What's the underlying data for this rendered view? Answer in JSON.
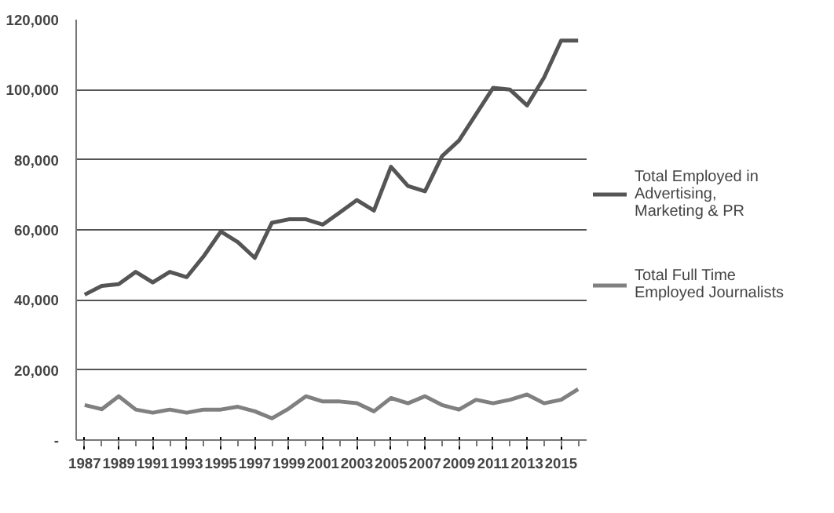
{
  "chart_data": {
    "type": "line",
    "x": [
      1987,
      1988,
      1989,
      1990,
      1991,
      1992,
      1993,
      1994,
      1995,
      1996,
      1997,
      1998,
      1999,
      2000,
      2001,
      2002,
      2003,
      2004,
      2005,
      2006,
      2007,
      2008,
      2009,
      2010,
      2011,
      2012,
      2013,
      2014,
      2015,
      2016
    ],
    "series": [
      {
        "name": "Total Employed in Advertising, Marketing & PR",
        "color": "#555555",
        "values": [
          41500,
          44000,
          44500,
          48000,
          45000,
          48000,
          46500,
          52500,
          59500,
          56500,
          52000,
          62000,
          63000,
          63000,
          61500,
          65000,
          68500,
          65500,
          78000,
          72500,
          71000,
          81000,
          85500,
          93000,
          100500,
          100000,
          95500,
          103500,
          114000,
          114000
        ]
      },
      {
        "name": "Total Full Time Employed Journalists",
        "color": "#808080",
        "values": [
          10000,
          8800,
          12500,
          8700,
          7800,
          8700,
          7800,
          8700,
          8700,
          9500,
          8200,
          6200,
          9000,
          12500,
          11000,
          11000,
          10500,
          8200,
          12000,
          10500,
          12500,
          10000,
          8700,
          11500,
          10500,
          11500,
          13000,
          10500,
          11500,
          14500
        ]
      }
    ],
    "xlim": [
      1986.5,
      2016.5
    ],
    "xticks": [
      1987,
      1989,
      1991,
      1993,
      1995,
      1997,
      1999,
      2001,
      2003,
      2005,
      2007,
      2009,
      2011,
      2013,
      2015
    ],
    "ylim": [
      0,
      120000
    ],
    "yticks": [
      {
        "value": 0,
        "label": "-"
      },
      {
        "value": 20000,
        "label": "20,000"
      },
      {
        "value": 40000,
        "label": "40,000"
      },
      {
        "value": 60000,
        "label": "60,000"
      },
      {
        "value": 80000,
        "label": "80,000"
      },
      {
        "value": 100000,
        "label": "100,000"
      },
      {
        "value": 120000,
        "label": "120,000"
      }
    ],
    "grid": "y",
    "legend": "right",
    "marker": "none",
    "line_style": "solid"
  }
}
